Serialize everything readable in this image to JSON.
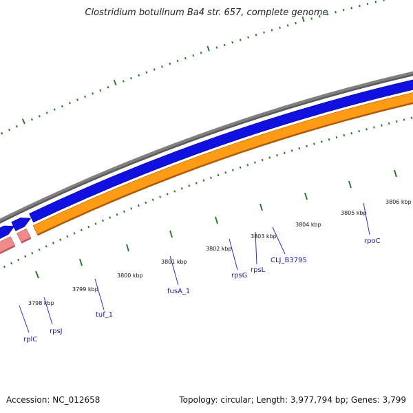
{
  "title": "Clostridium botulinum Ba4 str. 657, complete genome",
  "footer": {
    "accession": "Accession: NC_012658",
    "summary": "Topology: circular; Length: 3,977,794 bp; Genes: 3,799"
  },
  "colors": {
    "backbone": "#808080",
    "cds_forward": "#1010e0",
    "cds_forward_dark": "#05057a",
    "rna_pink": "#f08a8a",
    "rna_pink_dark": "#b45a5a",
    "operon_orange": "#ff9b14",
    "operon_orange_dark": "#b05a00",
    "gc_tick": "#2a7a2a",
    "label_blue": "#1a1aa6",
    "leader_line": "#2d2dd0"
  },
  "ticks": [
    {
      "label": "3798 kbp"
    },
    {
      "label": "3799 kbp"
    },
    {
      "label": "3800 kbp"
    },
    {
      "label": "3801 kbp"
    },
    {
      "label": "3802 kbp"
    },
    {
      "label": "3803 kbp"
    },
    {
      "label": "3804 kbp"
    },
    {
      "label": "3805 kbp"
    },
    {
      "label": "3806 kbp"
    }
  ],
  "genes": [
    {
      "label": "rplC"
    },
    {
      "label": "rpsJ"
    },
    {
      "label": "tuf_1"
    },
    {
      "label": "fusA_1"
    },
    {
      "label": "rpsG"
    },
    {
      "label": "rpsL"
    },
    {
      "label": "CLJ_B3795"
    },
    {
      "label": "rpoC"
    }
  ]
}
